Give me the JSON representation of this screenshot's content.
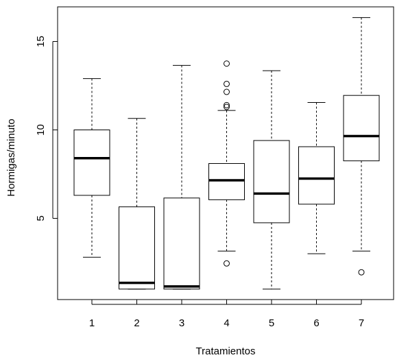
{
  "chart_data": {
    "type": "box",
    "title": "",
    "xlabel": "Tratamientos",
    "ylabel": "Hormigas/minuto",
    "ylim": [
      0.5,
      17
    ],
    "yticks": [
      5,
      10,
      15
    ],
    "categories": [
      "1",
      "2",
      "3",
      "4",
      "5",
      "6",
      "7"
    ],
    "boxes": [
      {
        "category": "1",
        "whisker_low": 2.8,
        "q1": 6.3,
        "median": 8.4,
        "q3": 10.0,
        "whisker_high": 12.9,
        "outliers": []
      },
      {
        "category": "2",
        "whisker_low": 1.0,
        "q1": 1.0,
        "median": 1.35,
        "q3": 5.65,
        "whisker_high": 10.65,
        "outliers": []
      },
      {
        "category": "3",
        "whisker_low": 1.0,
        "q1": 1.0,
        "median": 1.15,
        "q3": 6.15,
        "whisker_high": 13.65,
        "outliers": []
      },
      {
        "category": "4",
        "whisker_low": 3.15,
        "q1": 6.05,
        "median": 7.15,
        "q3": 8.1,
        "whisker_high": 11.1,
        "outliers": [
          2.45,
          11.3,
          11.4,
          12.15,
          12.6,
          13.75
        ]
      },
      {
        "category": "5",
        "whisker_low": 1.0,
        "q1": 4.75,
        "median": 6.4,
        "q3": 9.4,
        "whisker_high": 13.35,
        "outliers": []
      },
      {
        "category": "6",
        "whisker_low": 3.0,
        "q1": 5.8,
        "median": 7.25,
        "q3": 9.05,
        "whisker_high": 11.55,
        "outliers": []
      },
      {
        "category": "7",
        "whisker_low": 3.15,
        "q1": 8.25,
        "median": 9.65,
        "q3": 11.95,
        "whisker_high": 16.35,
        "outliers": [
          1.95
        ]
      }
    ],
    "grid": false,
    "legend": "none"
  }
}
